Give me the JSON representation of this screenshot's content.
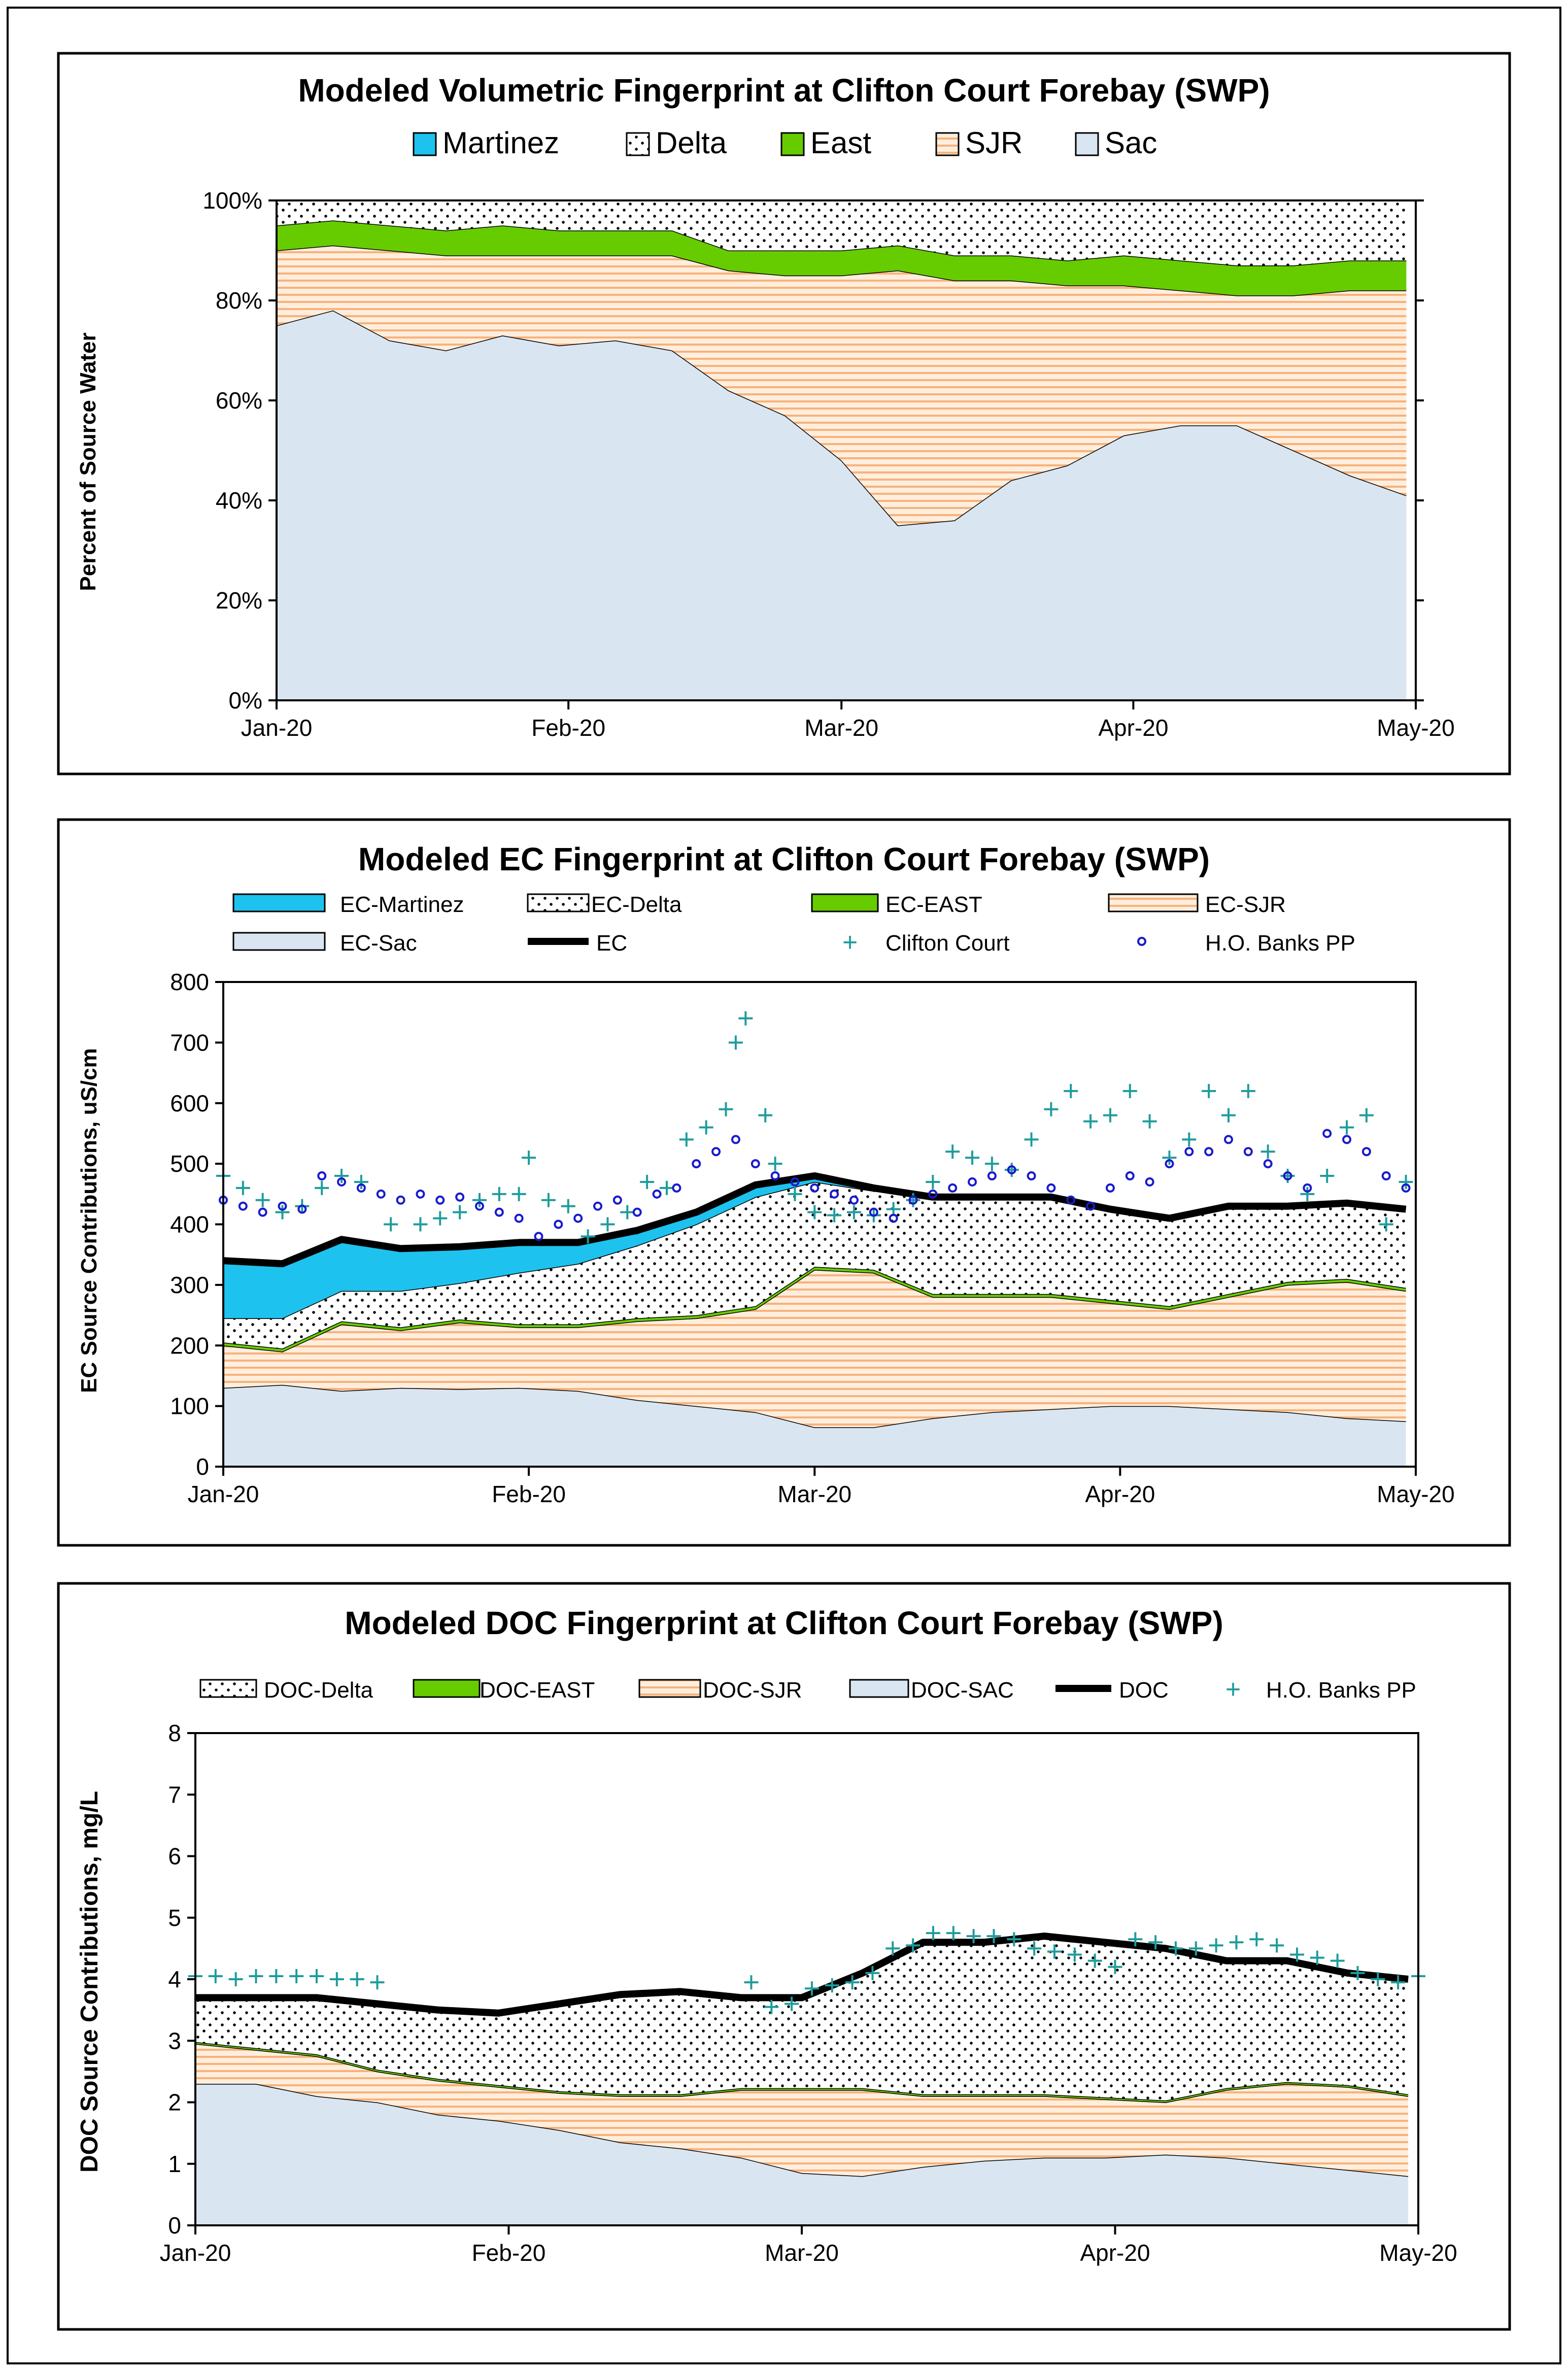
{
  "colors": {
    "martinez": "#1ec2ee",
    "delta_bg": "#ffffff",
    "east": "#66cc00",
    "sjr_bg": "#ffe7cc",
    "sjr_line": "#f7b27b",
    "sac": "#d9e6f1",
    "ec_line": "#000000",
    "clifton": "#1e9c9c",
    "banks": "#1a1acc"
  },
  "month_labels": [
    "Jan-20",
    "Feb-20",
    "Mar-20",
    "Apr-20",
    "May-20"
  ],
  "month_days": [
    0,
    31,
    60,
    91,
    121
  ],
  "chart_data": [
    {
      "type": "area",
      "title": "Modeled Volumetric Fingerprint at Clifton Court Forebay (SWP)",
      "ylabel": "Percent of Source Water",
      "xlabel": "",
      "ylim": [
        0,
        100
      ],
      "yticks": [
        0,
        20,
        40,
        60,
        80,
        100
      ],
      "ytick_labels": [
        "0%",
        "20%",
        "40%",
        "60%",
        "80%",
        "100%"
      ],
      "x_range_days": [
        0,
        121
      ],
      "legend": [
        "Martinez",
        "Delta",
        "East",
        "SJR",
        "Sac"
      ],
      "x_days": [
        0,
        6,
        12,
        18,
        24,
        30,
        36,
        42,
        48,
        54,
        60,
        66,
        72,
        78,
        84,
        90,
        96,
        102,
        108,
        114,
        120
      ],
      "series": [
        {
          "name": "Sac",
          "values": [
            75,
            78,
            72,
            70,
            73,
            71,
            72,
            70,
            62,
            57,
            48,
            35,
            36,
            44,
            47,
            53,
            55,
            55,
            50,
            45,
            41
          ]
        },
        {
          "name": "SJR",
          "values": [
            15,
            13,
            18,
            19,
            16,
            18,
            17,
            19,
            24,
            28,
            37,
            51,
            48,
            40,
            36,
            30,
            27,
            26,
            31,
            37,
            41
          ]
        },
        {
          "name": "East",
          "values": [
            5,
            5,
            5,
            5,
            6,
            5,
            5,
            5,
            4,
            5,
            5,
            5,
            5,
            5,
            5,
            6,
            6,
            6,
            6,
            6,
            6
          ]
        },
        {
          "name": "Delta",
          "values": [
            5,
            4,
            5,
            6,
            5,
            6,
            6,
            6,
            10,
            10,
            10,
            9,
            11,
            11,
            12,
            11,
            12,
            13,
            13,
            12,
            12
          ]
        },
        {
          "name": "Martinez",
          "values": [
            0,
            0,
            0,
            0,
            0,
            0,
            0,
            0,
            0,
            0,
            0,
            0,
            0,
            0,
            0,
            0,
            0,
            0,
            0,
            0,
            0
          ]
        }
      ]
    },
    {
      "type": "area",
      "title": "Modeled EC Fingerprint at Clifton Court Forebay (SWP)",
      "ylabel": "EC Source Contributions,  uS/cm",
      "xlabel": "",
      "ylim": [
        0,
        800
      ],
      "yticks": [
        0,
        100,
        200,
        300,
        400,
        500,
        600,
        700,
        800
      ],
      "ytick_labels": [
        "0",
        "100",
        "200",
        "300",
        "400",
        "500",
        "600",
        "700",
        "800"
      ],
      "x_range_days": [
        0,
        121
      ],
      "legend": [
        "EC-Martinez",
        "EC-Delta",
        "EC-EAST",
        "EC-SJR",
        "EC-Sac",
        "EC",
        "Clifton Court",
        "H.O. Banks PP"
      ],
      "x_days": [
        0,
        6,
        12,
        18,
        24,
        30,
        36,
        42,
        48,
        54,
        60,
        66,
        72,
        78,
        84,
        90,
        96,
        102,
        108,
        114,
        120
      ],
      "series": [
        {
          "name": "EC-Sac",
          "values": [
            130,
            135,
            125,
            130,
            128,
            130,
            125,
            110,
            100,
            90,
            65,
            65,
            80,
            90,
            95,
            100,
            100,
            95,
            90,
            80,
            75
          ]
        },
        {
          "name": "EC-SJR",
          "values": [
            70,
            55,
            110,
            95,
            110,
            100,
            105,
            130,
            145,
            170,
            260,
            255,
            200,
            190,
            185,
            170,
            160,
            185,
            210,
            225,
            215
          ]
        },
        {
          "name": "EC-EAST",
          "values": [
            5,
            5,
            5,
            5,
            5,
            5,
            5,
            5,
            5,
            5,
            5,
            5,
            5,
            5,
            5,
            5,
            5,
            5,
            5,
            5,
            5
          ]
        },
        {
          "name": "EC-Delta",
          "values": [
            40,
            50,
            50,
            60,
            60,
            85,
            100,
            120,
            150,
            180,
            140,
            130,
            160,
            160,
            160,
            150,
            145,
            145,
            125,
            125,
            130
          ]
        },
        {
          "name": "EC-Martinez",
          "values": [
            95,
            90,
            85,
            70,
            60,
            50,
            35,
            20,
            20,
            20,
            10,
            5,
            0,
            0,
            0,
            0,
            0,
            0,
            0,
            0,
            0
          ]
        }
      ],
      "ec_total": {
        "name": "EC",
        "x_days": [
          0,
          6,
          12,
          18,
          24,
          30,
          36,
          42,
          48,
          54,
          60,
          66,
          72,
          78,
          84,
          90,
          96,
          102,
          108,
          114,
          120
        ],
        "values": [
          340,
          335,
          375,
          360,
          363,
          370,
          370,
          390,
          420,
          465,
          480,
          460,
          445,
          445,
          445,
          425,
          410,
          430,
          430,
          435,
          425
        ]
      },
      "clifton_court": {
        "name": "Clifton Court",
        "x": [
          0,
          2,
          4,
          6,
          8,
          10,
          12,
          14,
          17,
          20,
          22,
          24,
          26,
          28,
          30,
          31,
          33,
          35,
          37,
          39,
          41,
          43,
          45,
          47,
          49,
          51,
          52,
          53,
          55,
          56,
          58,
          60,
          62,
          64,
          66,
          68,
          70,
          72,
          74,
          76,
          78,
          80,
          82,
          84,
          86,
          88,
          90,
          92,
          94,
          96,
          98,
          100,
          102,
          104,
          106,
          108,
          110,
          112,
          114,
          116,
          118,
          120
        ],
        "y": [
          480,
          460,
          440,
          420,
          430,
          460,
          480,
          470,
          400,
          400,
          410,
          420,
          440,
          450,
          450,
          510,
          440,
          430,
          380,
          400,
          420,
          470,
          460,
          540,
          560,
          590,
          700,
          740,
          580,
          500,
          450,
          420,
          415,
          420,
          415,
          425,
          440,
          470,
          520,
          510,
          500,
          490,
          540,
          590,
          620,
          570,
          580,
          620,
          570,
          510,
          540,
          620,
          580,
          620,
          520,
          480,
          450,
          480,
          560,
          580,
          400,
          470
        ]
      },
      "banks_pp": {
        "name": "H.O. Banks PP",
        "x": [
          0,
          2,
          4,
          6,
          8,
          10,
          12,
          14,
          16,
          18,
          20,
          22,
          24,
          26,
          28,
          30,
          32,
          34,
          36,
          38,
          40,
          42,
          44,
          46,
          48,
          50,
          52,
          54,
          56,
          58,
          60,
          62,
          64,
          66,
          68,
          70,
          72,
          74,
          76,
          78,
          80,
          82,
          84,
          86,
          88,
          90,
          92,
          94,
          96,
          98,
          100,
          102,
          104,
          106,
          108,
          110,
          112,
          114,
          116,
          118,
          120
        ],
        "y": [
          440,
          430,
          420,
          430,
          425,
          480,
          470,
          460,
          450,
          440,
          450,
          440,
          445,
          430,
          420,
          410,
          380,
          400,
          410,
          430,
          440,
          420,
          450,
          460,
          500,
          520,
          540,
          500,
          480,
          470,
          460,
          450,
          440,
          420,
          410,
          440,
          450,
          460,
          470,
          480,
          490,
          480,
          460,
          440,
          430,
          460,
          480,
          470,
          500,
          520,
          520,
          540,
          520,
          500,
          480,
          460,
          550,
          540,
          520,
          480,
          460
        ]
      }
    },
    {
      "type": "area",
      "title": "Modeled DOC Fingerprint at Clifton Court Forebay (SWP)",
      "ylabel": "DOC Source Contributions, mg/L",
      "xlabel": "",
      "ylim": [
        0,
        8
      ],
      "yticks": [
        0,
        1,
        2,
        3,
        4,
        5,
        6,
        7,
        8
      ],
      "ytick_labels": [
        "0",
        "1",
        "2",
        "3",
        "4",
        "5",
        "6",
        "7",
        "8"
      ],
      "x_range_days": [
        0,
        121
      ],
      "legend": [
        "DOC-Delta",
        "DOC-EAST",
        "DOC-SJR",
        "DOC-SAC",
        "DOC",
        "H.O. Banks PP"
      ],
      "x_days": [
        0,
        6,
        12,
        18,
        24,
        30,
        36,
        42,
        48,
        54,
        60,
        66,
        72,
        78,
        84,
        90,
        96,
        102,
        108,
        114,
        120
      ],
      "series": [
        {
          "name": "DOC-SAC",
          "values": [
            2.3,
            2.3,
            2.1,
            2.0,
            1.8,
            1.7,
            1.55,
            1.35,
            1.25,
            1.1,
            0.85,
            0.8,
            0.95,
            1.05,
            1.1,
            1.1,
            1.15,
            1.1,
            1.0,
            0.9,
            0.8
          ]
        },
        {
          "name": "DOC-SJR",
          "values": [
            0.65,
            0.55,
            0.65,
            0.5,
            0.55,
            0.55,
            0.6,
            0.75,
            0.85,
            1.1,
            1.35,
            1.4,
            1.15,
            1.05,
            1.0,
            0.95,
            0.85,
            1.1,
            1.3,
            1.35,
            1.3
          ]
        },
        {
          "name": "DOC-EAST",
          "values": [
            0.03,
            0.03,
            0.03,
            0.03,
            0.03,
            0.03,
            0.03,
            0.03,
            0.03,
            0.03,
            0.03,
            0.03,
            0.03,
            0.03,
            0.03,
            0.03,
            0.03,
            0.03,
            0.03,
            0.03,
            0.03
          ]
        },
        {
          "name": "DOC-Delta",
          "values": [
            0.72,
            0.82,
            0.92,
            1.07,
            1.12,
            1.17,
            1.42,
            1.62,
            1.67,
            1.47,
            1.47,
            1.87,
            2.47,
            2.47,
            2.57,
            2.52,
            2.47,
            2.07,
            1.97,
            1.82,
            1.87
          ]
        }
      ],
      "doc_total": {
        "name": "DOC",
        "x_days": [
          0,
          6,
          12,
          18,
          24,
          30,
          36,
          42,
          48,
          54,
          60,
          66,
          72,
          78,
          84,
          90,
          96,
          102,
          108,
          114,
          120
        ],
        "values": [
          3.7,
          3.7,
          3.7,
          3.6,
          3.5,
          3.45,
          3.6,
          3.75,
          3.8,
          3.7,
          3.7,
          4.1,
          4.6,
          4.6,
          4.7,
          4.6,
          4.5,
          4.3,
          4.3,
          4.1,
          4.0
        ]
      },
      "banks_pp": {
        "name": "H.O. Banks PP",
        "x": [
          0,
          2,
          4,
          6,
          8,
          10,
          12,
          14,
          16,
          18,
          55,
          57,
          59,
          61,
          63,
          65,
          67,
          69,
          71,
          73,
          75,
          77,
          79,
          81,
          83,
          85,
          87,
          89,
          91,
          93,
          95,
          97,
          99,
          101,
          103,
          105,
          107,
          109,
          111,
          113,
          115,
          117,
          119,
          121
        ],
        "y": [
          4.05,
          4.05,
          4.0,
          4.05,
          4.05,
          4.05,
          4.05,
          4.0,
          4.0,
          3.95,
          3.95,
          3.55,
          3.6,
          3.85,
          3.9,
          3.95,
          4.1,
          4.5,
          4.55,
          4.75,
          4.75,
          4.7,
          4.7,
          4.65,
          4.5,
          4.45,
          4.4,
          4.3,
          4.2,
          4.65,
          4.6,
          4.5,
          4.5,
          4.55,
          4.6,
          4.65,
          4.55,
          4.4,
          4.35,
          4.3,
          4.1,
          4.0,
          3.95,
          4.05
        ]
      }
    }
  ]
}
